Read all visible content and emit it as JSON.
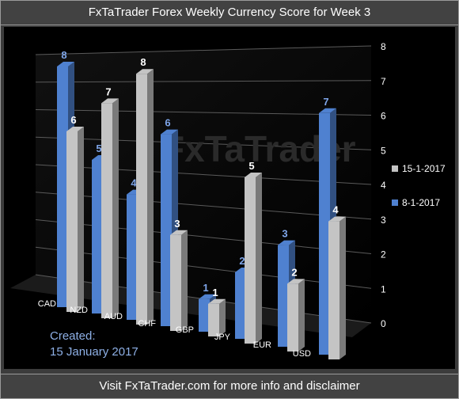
{
  "header": {
    "title": "FxTaTrader Forex Weekly Currency Score for Week 3"
  },
  "footer": {
    "text": "Visit FxTaTrader.com for more info and disclaimer"
  },
  "created": {
    "label": "Created:",
    "date": "15 January 2017"
  },
  "watermark": "FxTaTrader",
  "colors": {
    "series_blue": "#4f81d0",
    "series_gray": "#c4c4c4",
    "label_blue": "#7fa6ea",
    "label_gray": "#ffffff"
  },
  "chart_data": {
    "type": "bar",
    "title": "FxTaTrader Forex Weekly Currency Score for Week 3",
    "categories": [
      "CAD",
      "NZD",
      "AUD",
      "CHF",
      "GBP",
      "JPY",
      "EUR",
      "USD"
    ],
    "series": [
      {
        "name": "8-1-2017",
        "values": [
          8,
          5,
          4,
          6,
          1,
          2,
          3,
          7
        ]
      },
      {
        "name": "15-1-2017",
        "values": [
          6,
          7,
          8,
          3,
          1,
          5,
          2,
          4
        ]
      }
    ],
    "ylim": [
      0,
      8
    ],
    "yticks": [
      "0",
      "1",
      "2",
      "3",
      "4",
      "5",
      "6",
      "7",
      "8"
    ],
    "legend_position": "right",
    "grid": true,
    "data_labels": true
  }
}
